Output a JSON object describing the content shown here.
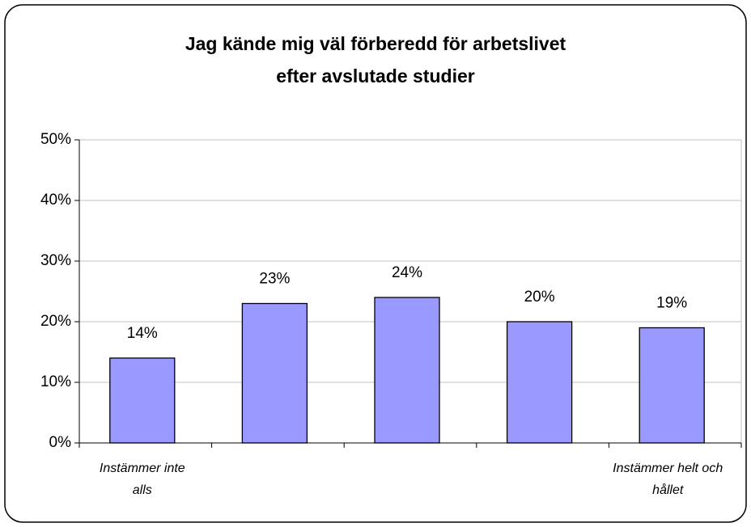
{
  "chart_data": {
    "type": "bar",
    "title": "Jag kände mig väl förberedd för arbetslivet efter avslutade studier",
    "categories": [
      "Instämmer inte alls",
      null,
      null,
      null,
      "Instämmer helt och hållet"
    ],
    "values": [
      14,
      23,
      24,
      20,
      19
    ],
    "value_labels": [
      "14%",
      "23%",
      "24%",
      "20%",
      "19%"
    ],
    "color": "#9999ff",
    "ylim": [
      0,
      50
    ],
    "yticks": [
      {
        "value": 0,
        "label": "0%"
      },
      {
        "value": 10,
        "label": "10%"
      },
      {
        "value": 20,
        "label": "20%"
      },
      {
        "value": 30,
        "label": "30%"
      },
      {
        "value": 40,
        "label": "40%"
      },
      {
        "value": 50,
        "label": "50%"
      }
    ],
    "grid": true
  }
}
